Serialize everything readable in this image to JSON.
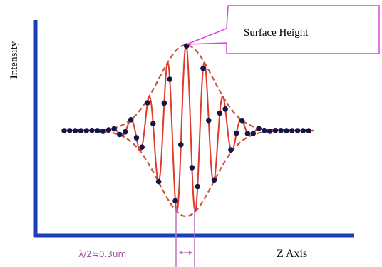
{
  "labels": {
    "y_axis": "Intensity",
    "x_axis": "Z Axis",
    "callout": "Surface Height",
    "spacing": "λ/2≒0.3um"
  },
  "colors": {
    "axis": "#1a3fb8",
    "fringe": "#e03a2a",
    "envelope": "#c8553c",
    "samples": "#14164a",
    "callout_border": "#e040e0",
    "guide": "#c070c0",
    "spacing_text": "#a050a0"
  }
}
